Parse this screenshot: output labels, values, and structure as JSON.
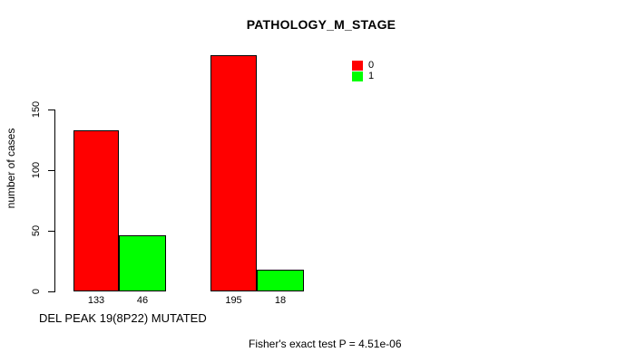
{
  "title": "PATHOLOGY_M_STAGE",
  "y_axis": {
    "label": "number of cases",
    "ticks": [
      0,
      50,
      100,
      150
    ]
  },
  "x_axis": {
    "label": "DEL PEAK 19(8P22) MUTATED"
  },
  "legend": {
    "items": [
      {
        "label": "0",
        "color": "#ff0000"
      },
      {
        "label": "1",
        "color": "#00ff00"
      }
    ]
  },
  "footer": {
    "stat_text": "Fisher's exact test P = 4.51e-06"
  },
  "chart_data": {
    "type": "bar",
    "title": "PATHOLOGY_M_STAGE",
    "xlabel": "DEL PEAK 19(8P22) MUTATED",
    "ylabel": "number of cases",
    "ylim": [
      0,
      150
    ],
    "yticks": [
      0,
      50,
      100,
      150
    ],
    "categories": [
      "",
      ""
    ],
    "series": [
      {
        "name": "0",
        "color": "#ff0000",
        "values": [
          133,
          195
        ]
      },
      {
        "name": "1",
        "color": "#00ff00",
        "values": [
          46,
          18
        ]
      }
    ],
    "bar_value_labels": [
      133,
      46,
      195,
      18
    ],
    "annotation": "Fisher's exact test P = 4.51e-06",
    "legend_position": "top-right",
    "grid": false
  }
}
